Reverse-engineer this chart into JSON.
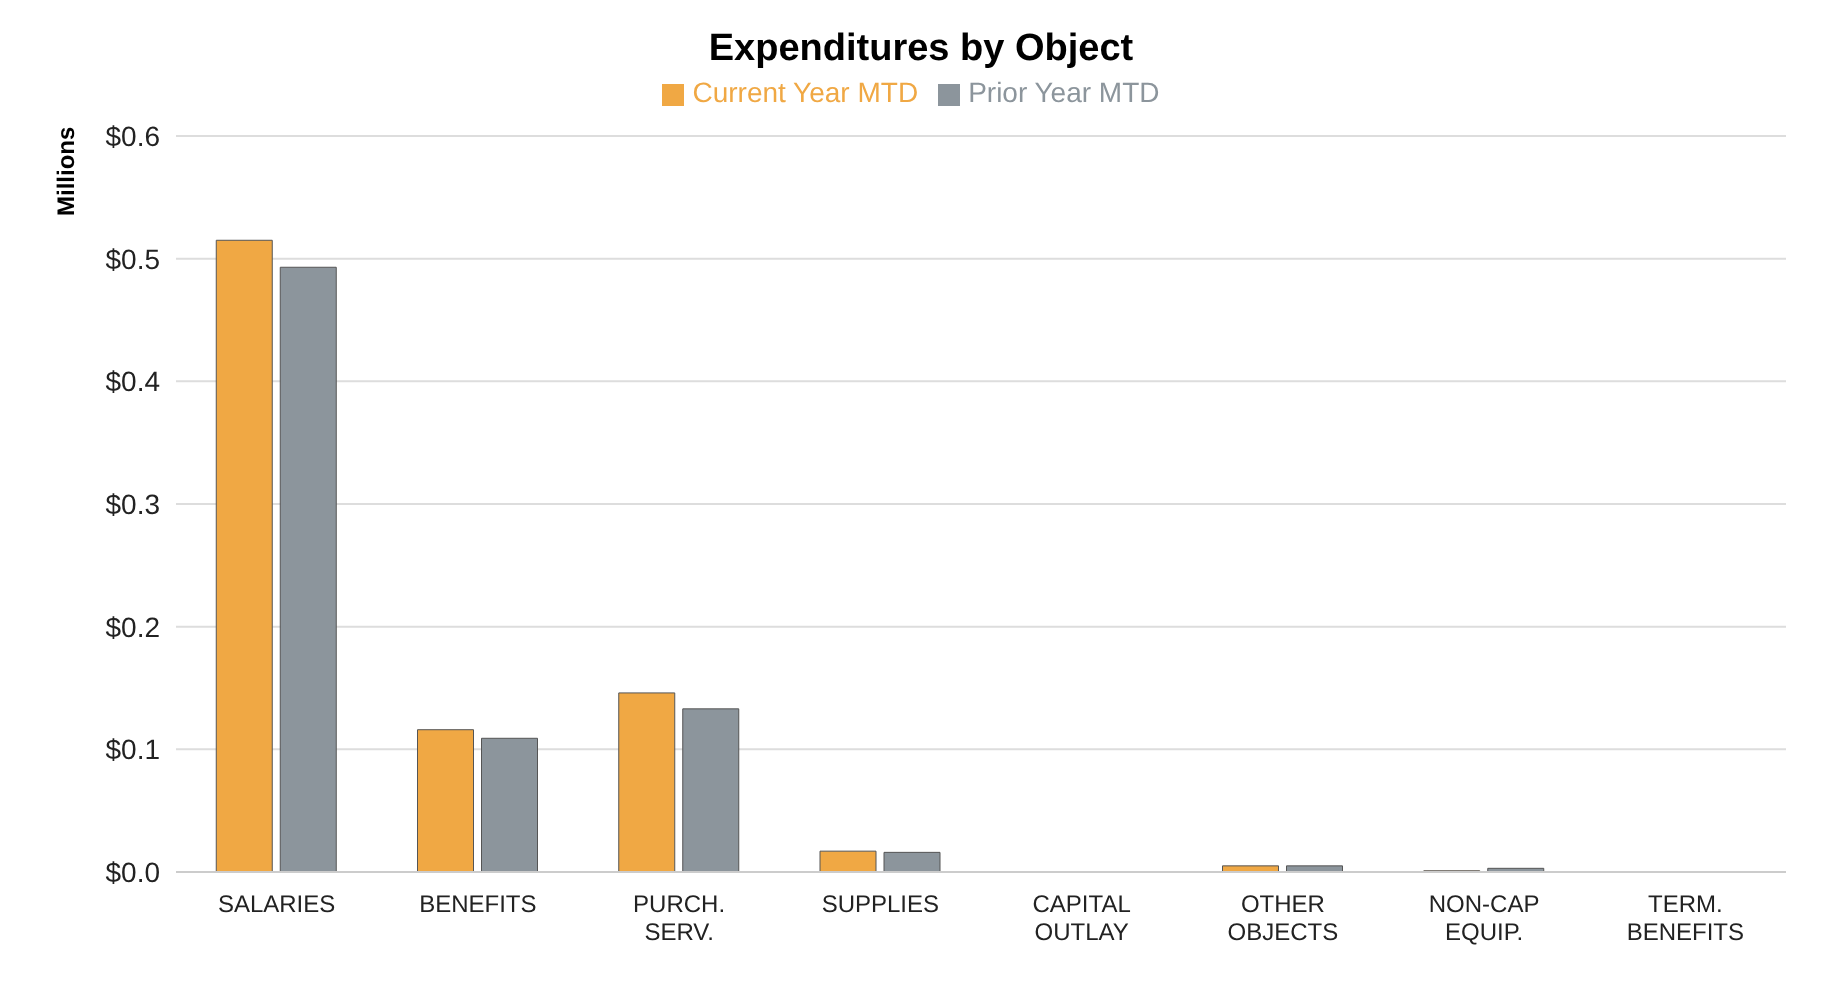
{
  "chart_data": {
    "type": "bar",
    "title": "Expenditures by Object",
    "ylabel": "Millions",
    "categories": [
      "SALARIES",
      "BENEFITS",
      "PURCH. SERV.",
      "SUPPLIES",
      "CAPITAL OUTLAY",
      "OTHER OBJECTS",
      "NON-CAP EQUIP.",
      "TERM. BENEFITS"
    ],
    "series": [
      {
        "name": "Current Year MTD",
        "color": "#f0a844",
        "values": [
          0.515,
          0.116,
          0.146,
          0.017,
          0,
          0.005,
          0.001,
          0
        ]
      },
      {
        "name": "Prior Year MTD",
        "color": "#8c959c",
        "values": [
          0.493,
          0.109,
          0.133,
          0.016,
          0,
          0.005,
          0.003,
          0
        ]
      }
    ],
    "ylim": [
      0,
      0.6
    ],
    "yticks": [
      {
        "value": 0,
        "label": "$0.0"
      },
      {
        "value": 0.1,
        "label": "$0.1"
      },
      {
        "value": 0.2,
        "label": "$0.2"
      },
      {
        "value": 0.3,
        "label": "$0.3"
      },
      {
        "value": 0.4,
        "label": "$0.4"
      },
      {
        "value": 0.5,
        "label": "$0.5"
      },
      {
        "value": 0.6,
        "label": "$0.6"
      }
    ],
    "grid": "y",
    "legend": "top"
  }
}
